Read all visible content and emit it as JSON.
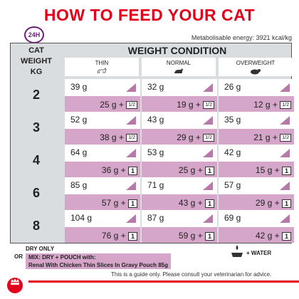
{
  "title": "HOW TO FEED YOUR CAT",
  "clock_label": "24H",
  "energy": "Metabolisable energy: 3921 kcal/kg",
  "left_header": [
    "CAT",
    "WEIGHT",
    "KG"
  ],
  "weight_condition_title": "WEIGHT CONDITION",
  "conditions": [
    "THIN",
    "NORMAL",
    "OVERWEIGHT"
  ],
  "rows": [
    {
      "weight": "2",
      "cells": [
        {
          "dry": "39 g",
          "mix": "25 g",
          "pouch": "1/2"
        },
        {
          "dry": "32 g",
          "mix": "19 g",
          "pouch": "1/2"
        },
        {
          "dry": "26 g",
          "mix": "12 g",
          "pouch": "1/2"
        }
      ]
    },
    {
      "weight": "3",
      "cells": [
        {
          "dry": "52 g",
          "mix": "38 g",
          "pouch": "1/2"
        },
        {
          "dry": "43 g",
          "mix": "29 g",
          "pouch": "1/2"
        },
        {
          "dry": "35 g",
          "mix": "21 g",
          "pouch": "1/2"
        }
      ]
    },
    {
      "weight": "4",
      "cells": [
        {
          "dry": "64 g",
          "mix": "36 g",
          "pouch": "1"
        },
        {
          "dry": "53 g",
          "mix": "25 g",
          "pouch": "1"
        },
        {
          "dry": "42 g",
          "mix": "15 g",
          "pouch": "1"
        }
      ]
    },
    {
      "weight": "6",
      "cells": [
        {
          "dry": "85 g",
          "mix": "57 g",
          "pouch": "1"
        },
        {
          "dry": "71 g",
          "mix": "43 g",
          "pouch": "1"
        },
        {
          "dry": "57 g",
          "mix": "29 g",
          "pouch": "1"
        }
      ]
    },
    {
      "weight": "8",
      "cells": [
        {
          "dry": "104 g",
          "mix": "76 g",
          "pouch": "1"
        },
        {
          "dry": "87 g",
          "mix": "59 g",
          "pouch": "1"
        },
        {
          "dry": "69 g",
          "mix": "42 g",
          "pouch": "1"
        }
      ]
    }
  ],
  "plus": "+",
  "legend": {
    "dry_only": "DRY ONLY",
    "or": "OR",
    "mix": "MIX: DRY + POUCH with:",
    "mix_detail": "Renal With Chicken Thin Slices In Gravy Pouch 85g"
  },
  "water": "+ WATER",
  "footnote": "This is a guide only. Please consult your veterinarian for advice.",
  "colors": {
    "brand_red": "#e2001a",
    "pink": "#d5a6c9",
    "grey": "#dadde0",
    "purple": "#6e1e7a"
  }
}
